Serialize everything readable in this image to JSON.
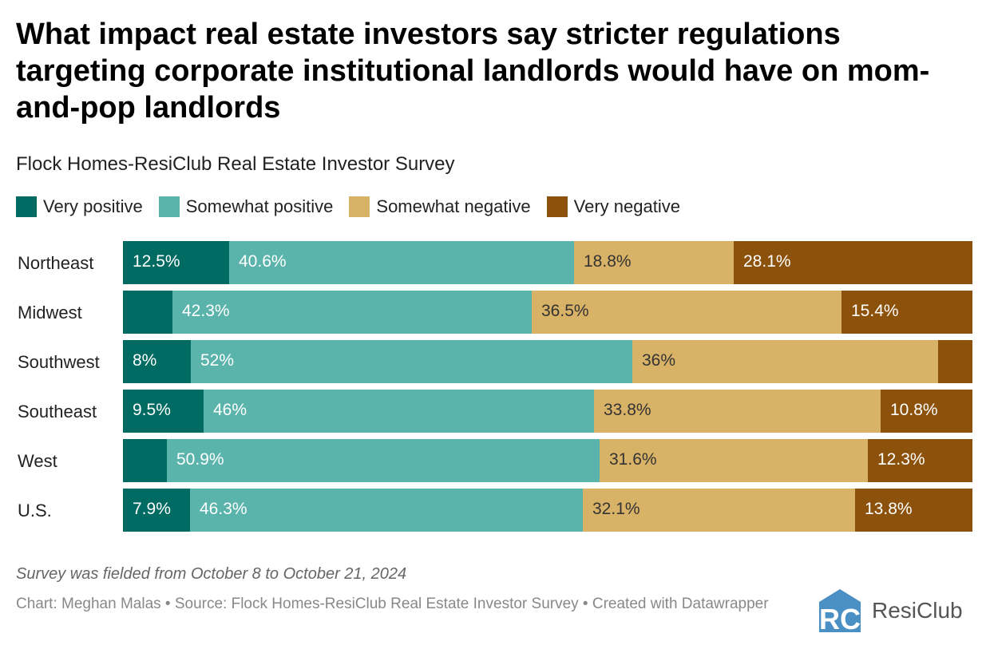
{
  "chart_data": {
    "type": "bar",
    "orientation": "horizontal",
    "stacked": true,
    "title": "What impact real estate investors say stricter regulations targeting corporate institutional landlords would have on mom-and-pop landlords",
    "subtitle": "Flock Homes-ResiClub Real Estate Investor Survey",
    "legend_position": "top",
    "categories": [
      "Northeast",
      "Midwest",
      "Southwest",
      "Southeast",
      "West",
      "U.S."
    ],
    "series": [
      {
        "name": "Very positive",
        "color": "#006b63",
        "text_color": "#ffffff",
        "values": [
          12.5,
          5.8,
          8,
          9.5,
          5.2,
          7.9
        ],
        "labels": [
          "12.5%",
          "",
          "8%",
          "9.5%",
          "",
          "7.9%"
        ]
      },
      {
        "name": "Somewhat positive",
        "color": "#5ab4ab",
        "text_color": "#ffffff",
        "values": [
          40.6,
          42.3,
          52,
          46,
          50.9,
          46.3
        ],
        "labels": [
          "40.6%",
          "42.3%",
          "52%",
          "46%",
          "50.9%",
          "46.3%"
        ]
      },
      {
        "name": "Somewhat negative",
        "color": "#d8b266",
        "text_color": "#333333",
        "values": [
          18.8,
          36.5,
          36,
          33.8,
          31.6,
          32.1
        ],
        "labels": [
          "18.8%",
          "36.5%",
          "36%",
          "33.8%",
          "31.6%",
          "32.1%"
        ]
      },
      {
        "name": "Very negative",
        "color": "#8c510a",
        "text_color": "#ffffff",
        "values": [
          28.1,
          15.4,
          4,
          10.8,
          12.3,
          13.8
        ],
        "labels": [
          "28.1%",
          "15.4%",
          "",
          "10.8%",
          "12.3%",
          "13.8%"
        ]
      }
    ]
  },
  "footer": {
    "note": "Survey was fielded from October 8 to October 21, 2024",
    "credit": "Chart: Meghan Malas • Source: Flock Homes-ResiClub Real Estate Investor Survey • Created with Datawrapper",
    "logo_text": "ResiClub",
    "logo_mark": "RC",
    "logo_color": "#4a90c4"
  }
}
